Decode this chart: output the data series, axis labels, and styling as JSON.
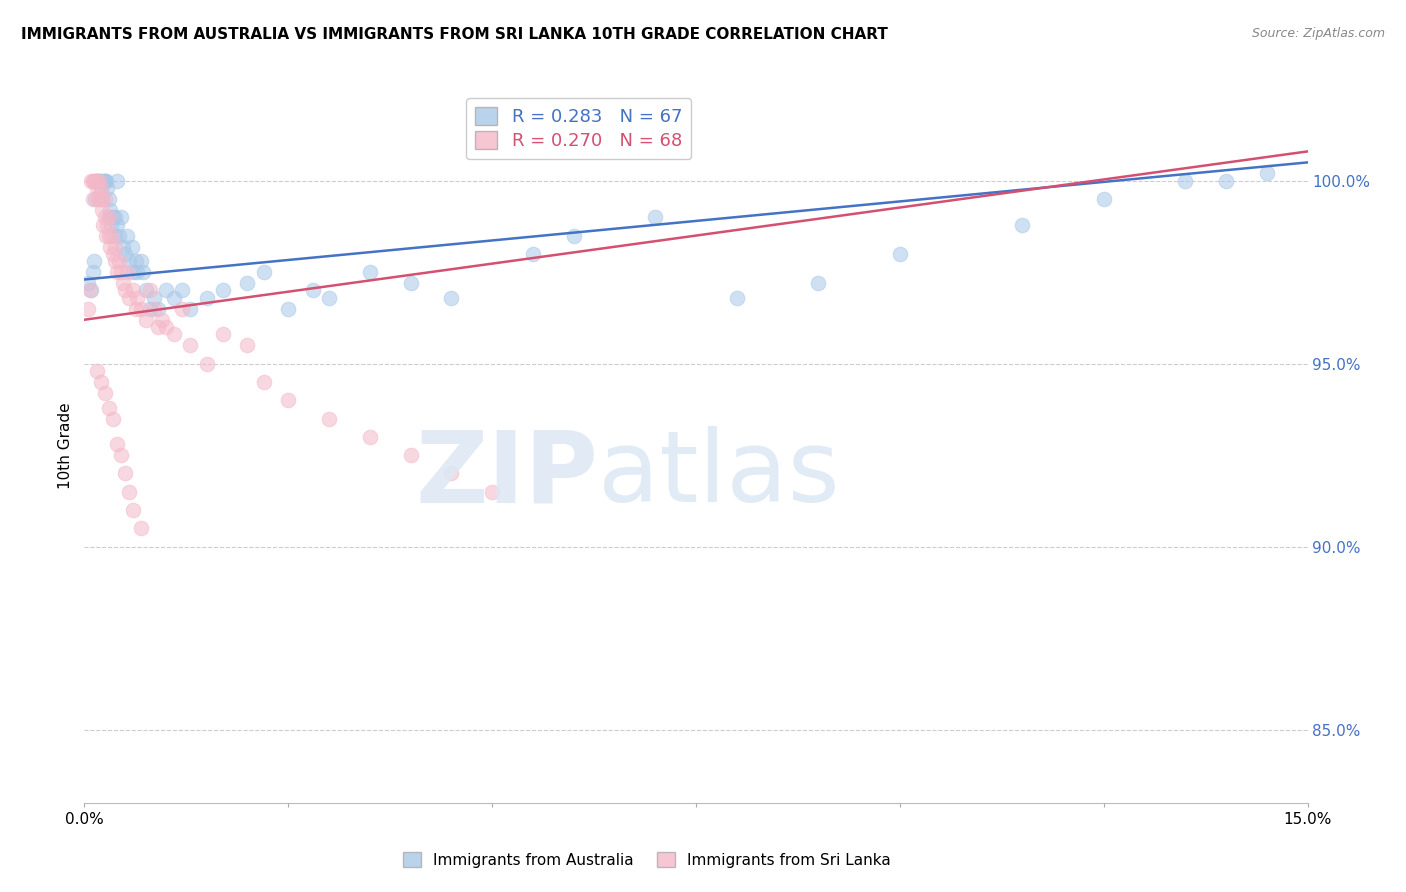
{
  "title": "IMMIGRANTS FROM AUSTRALIA VS IMMIGRANTS FROM SRI LANKA 10TH GRADE CORRELATION CHART",
  "source": "Source: ZipAtlas.com",
  "ylabel": "10th Grade",
  "yticks": [
    85.0,
    90.0,
    95.0,
    100.0
  ],
  "xlim": [
    0.0,
    15.0
  ],
  "ylim": [
    83.0,
    102.5
  ],
  "australia_R": 0.283,
  "australia_N": 67,
  "srilanka_R": 0.27,
  "srilanka_N": 68,
  "australia_color": "#a8c8e8",
  "srilanka_color": "#f4b8c8",
  "australia_line_color": "#4472c4",
  "srilanka_line_color": "#d45070",
  "australia_x": [
    0.05,
    0.08,
    0.1,
    0.12,
    0.13,
    0.15,
    0.15,
    0.17,
    0.18,
    0.2,
    0.2,
    0.22,
    0.23,
    0.25,
    0.25,
    0.27,
    0.28,
    0.3,
    0.3,
    0.32,
    0.33,
    0.35,
    0.37,
    0.38,
    0.4,
    0.4,
    0.42,
    0.45,
    0.47,
    0.5,
    0.52,
    0.55,
    0.58,
    0.6,
    0.63,
    0.65,
    0.7,
    0.72,
    0.75,
    0.8,
    0.85,
    0.9,
    1.0,
    1.1,
    1.2,
    1.3,
    1.5,
    1.7,
    2.0,
    2.2,
    2.5,
    2.8,
    3.0,
    3.5,
    4.0,
    4.5,
    5.5,
    6.0,
    7.0,
    8.0,
    9.0,
    10.0,
    11.5,
    12.5,
    13.5,
    14.0,
    14.5
  ],
  "australia_y": [
    97.2,
    97.0,
    97.5,
    97.8,
    99.5,
    100.0,
    100.0,
    100.0,
    100.0,
    100.0,
    99.8,
    99.5,
    100.0,
    100.0,
    100.0,
    100.0,
    99.8,
    99.5,
    99.0,
    99.2,
    98.8,
    99.0,
    98.5,
    99.0,
    98.8,
    100.0,
    98.5,
    99.0,
    98.2,
    98.0,
    98.5,
    97.8,
    98.2,
    97.5,
    97.8,
    97.5,
    97.8,
    97.5,
    97.0,
    96.5,
    96.8,
    96.5,
    97.0,
    96.8,
    97.0,
    96.5,
    96.8,
    97.0,
    97.2,
    97.5,
    96.5,
    97.0,
    96.8,
    97.5,
    97.2,
    96.8,
    98.0,
    98.5,
    99.0,
    96.8,
    97.2,
    98.0,
    98.8,
    99.5,
    100.0,
    100.0,
    100.2
  ],
  "srilanka_x": [
    0.05,
    0.07,
    0.08,
    0.1,
    0.1,
    0.12,
    0.13,
    0.15,
    0.15,
    0.17,
    0.18,
    0.18,
    0.2,
    0.2,
    0.22,
    0.23,
    0.25,
    0.25,
    0.27,
    0.28,
    0.3,
    0.3,
    0.32,
    0.33,
    0.35,
    0.37,
    0.38,
    0.4,
    0.42,
    0.45,
    0.47,
    0.5,
    0.52,
    0.55,
    0.6,
    0.63,
    0.65,
    0.7,
    0.75,
    0.8,
    0.85,
    0.9,
    0.95,
    1.0,
    1.1,
    1.2,
    1.3,
    1.5,
    1.7,
    2.0,
    2.2,
    2.5,
    3.0,
    3.5,
    4.0,
    4.5,
    5.0,
    0.15,
    0.2,
    0.25,
    0.3,
    0.35,
    0.4,
    0.45,
    0.5,
    0.55,
    0.6,
    0.7
  ],
  "srilanka_y": [
    96.5,
    97.0,
    100.0,
    100.0,
    99.5,
    100.0,
    100.0,
    100.0,
    99.8,
    99.5,
    99.5,
    100.0,
    99.8,
    99.5,
    99.2,
    98.8,
    99.5,
    99.0,
    98.5,
    98.8,
    98.5,
    99.0,
    98.2,
    98.5,
    98.0,
    97.8,
    98.2,
    97.5,
    97.8,
    97.5,
    97.2,
    97.0,
    97.5,
    96.8,
    97.0,
    96.5,
    96.8,
    96.5,
    96.2,
    97.0,
    96.5,
    96.0,
    96.2,
    96.0,
    95.8,
    96.5,
    95.5,
    95.0,
    95.8,
    95.5,
    94.5,
    94.0,
    93.5,
    93.0,
    92.5,
    92.0,
    91.5,
    94.8,
    94.5,
    94.2,
    93.8,
    93.5,
    92.8,
    92.5,
    92.0,
    91.5,
    91.0,
    90.5
  ],
  "aus_line_x0": 0.0,
  "aus_line_y0": 97.3,
  "aus_line_x1": 15.0,
  "aus_line_y1": 100.5,
  "sri_line_x0": 0.0,
  "sri_line_y0": 96.2,
  "sri_line_x1": 15.0,
  "sri_line_y1": 100.8
}
